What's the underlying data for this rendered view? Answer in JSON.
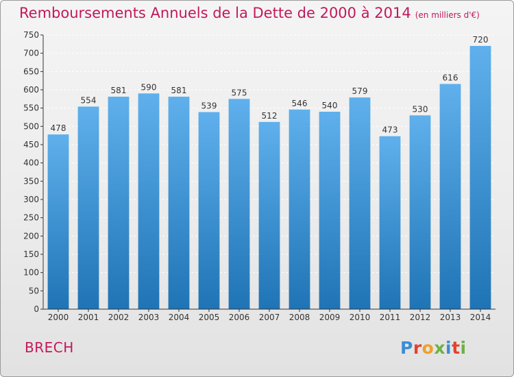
{
  "title": "Remboursements Annuels de la Dette de 2000 à 2014",
  "unit_note": "(en milliers d'€)",
  "commune": "BRECH",
  "logo": {
    "text": "Proxiti",
    "letter_colors": [
      "#3a8dd6",
      "#e0442e",
      "#f0a028",
      "#6cb33f",
      "#3a8dd6",
      "#e0442e",
      "#6cb33f"
    ]
  },
  "colors": {
    "bar_top": "#5fb0ec",
    "bar_bottom": "#1f74b5",
    "title": "#c2185b",
    "axis": "#333333",
    "grid": "#ffffff"
  },
  "chart_data": {
    "type": "bar",
    "title": "Remboursements Annuels de la Dette de 2000 à 2014",
    "categories": [
      "2000",
      "2001",
      "2002",
      "2003",
      "2004",
      "2005",
      "2006",
      "2007",
      "2008",
      "2009",
      "2010",
      "2011",
      "2012",
      "2013",
      "2014"
    ],
    "values": [
      478,
      554,
      581,
      590,
      581,
      539,
      575,
      512,
      546,
      540,
      579,
      473,
      530,
      616,
      720
    ],
    "data_labels": [
      "478",
      "554",
      "581",
      "590",
      "581",
      "539",
      "575",
      "512",
      "546",
      "540",
      "579",
      "473",
      "530",
      "616",
      "720"
    ],
    "yticks": [
      "0",
      "50",
      "100",
      "150",
      "200",
      "250",
      "300",
      "350",
      "400",
      "450",
      "500",
      "550",
      "600",
      "650",
      "700",
      "750"
    ],
    "ylim": [
      0,
      750
    ],
    "xlabel": "",
    "ylabel": "",
    "grid": true,
    "grid_style": "dashed horizontal white"
  }
}
